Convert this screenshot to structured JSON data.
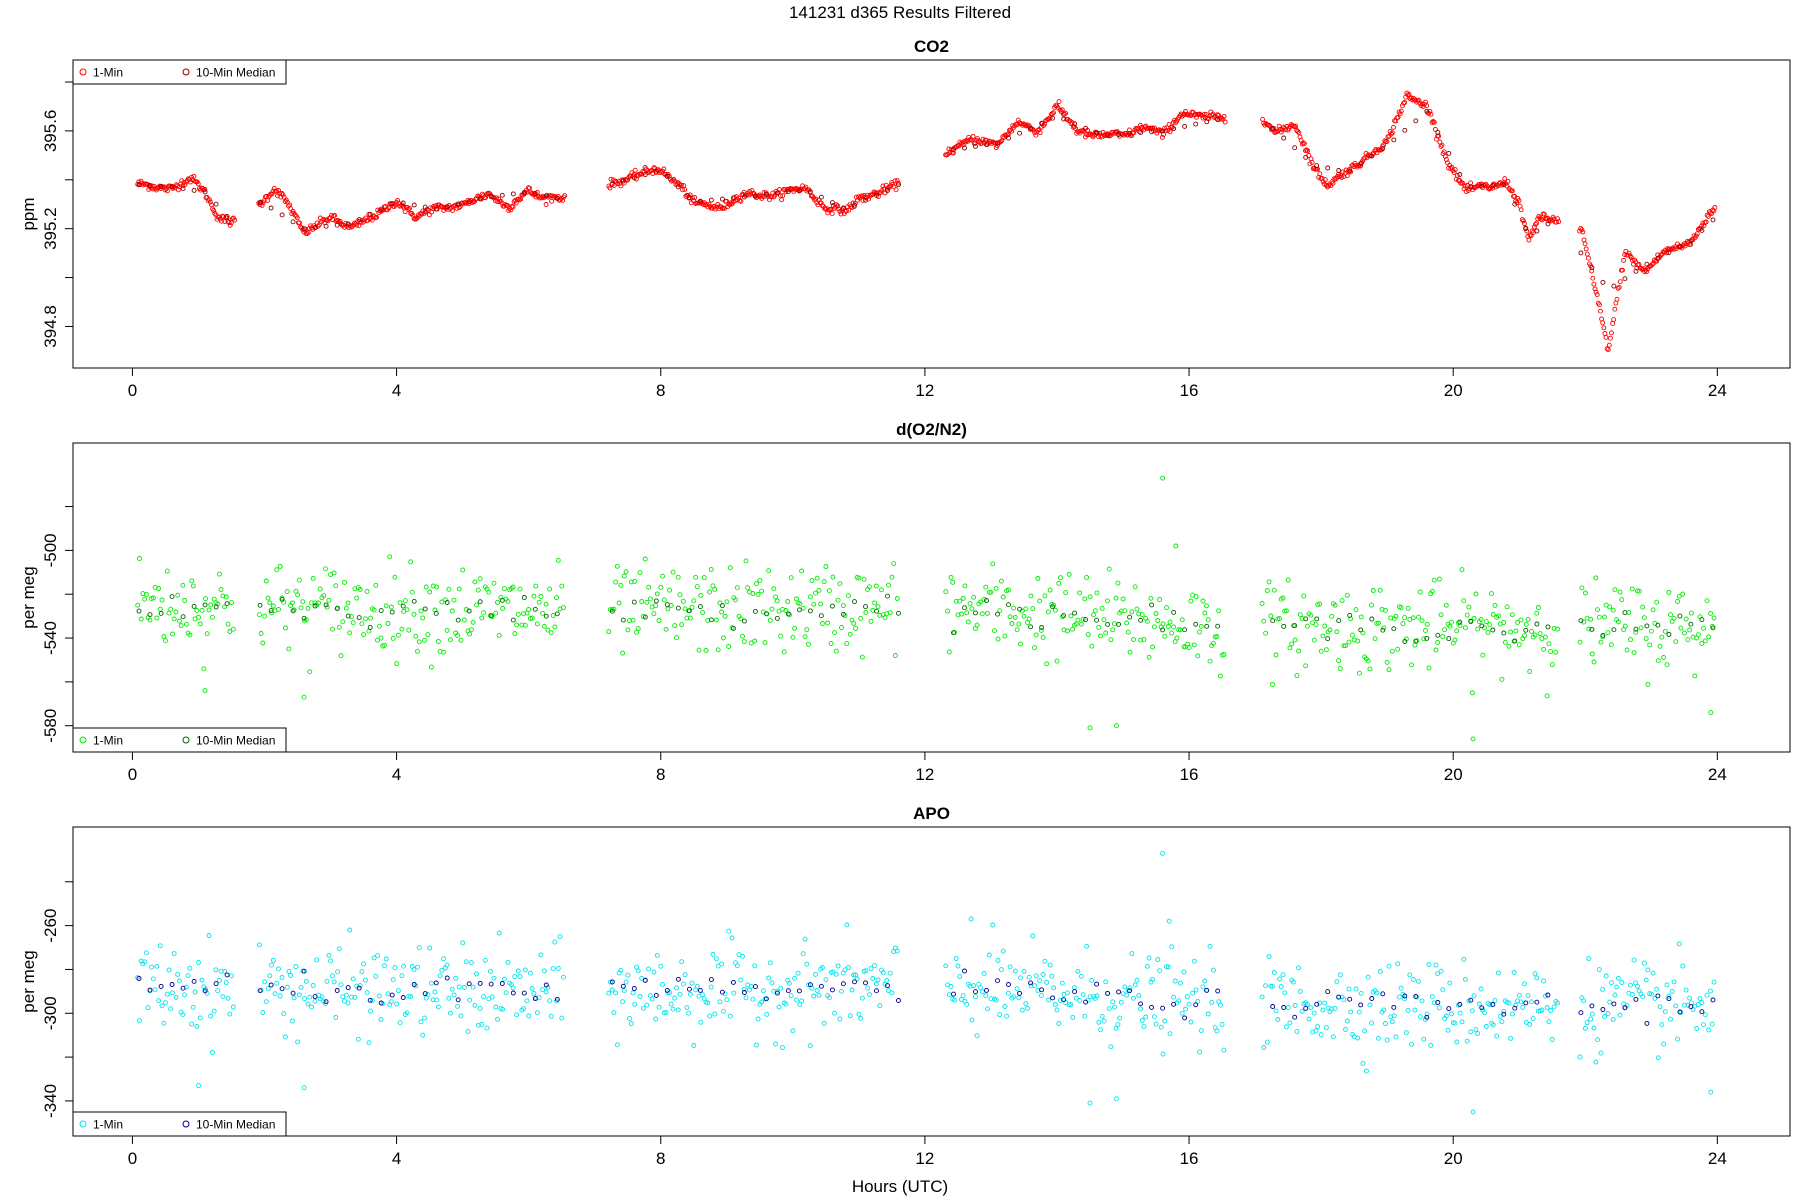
{
  "page_title": "141231   d365   Results Filtered",
  "x_axis_label": "Hours (UTC)",
  "chart_data": [
    {
      "id": "co2",
      "type": "scatter",
      "title": "CO2",
      "ylabel": "ppm",
      "xlim": [
        -0.9,
        25.1
      ],
      "xticks": [
        0,
        4,
        8,
        12,
        16,
        20,
        24
      ],
      "ylim": [
        394.63,
        395.89
      ],
      "yticks": [
        394.8,
        395.2,
        395.6
      ],
      "ytick_labels": [
        "394.8",
        "395.2",
        "395.6"
      ],
      "yticks_minor": [
        394.6,
        395.0,
        395.4,
        395.8
      ],
      "legend": {
        "placement": "top-left",
        "items": [
          "1-Min",
          "10-Min Median"
        ]
      },
      "colors": {
        "one_min": "#ff0000",
        "median": "#8b0000"
      },
      "series": [
        {
          "name": "1-Min",
          "anchors": [
            [
              0.08,
              395.38
            ],
            [
              0.3,
              395.37
            ],
            [
              0.6,
              395.37
            ],
            [
              0.9,
              395.4
            ],
            [
              1.1,
              395.35
            ],
            [
              1.3,
              395.25
            ],
            [
              1.5,
              395.22
            ],
            [
              1.95,
              395.31
            ],
            [
              2.15,
              395.36
            ],
            [
              2.35,
              395.3
            ],
            [
              2.6,
              395.19
            ],
            [
              3.0,
              395.24
            ],
            [
              3.3,
              395.21
            ],
            [
              3.7,
              395.25
            ],
            [
              4.0,
              395.32
            ],
            [
              4.3,
              395.24
            ],
            [
              4.6,
              395.29
            ],
            [
              5.0,
              395.29
            ],
            [
              5.4,
              395.35
            ],
            [
              5.7,
              395.28
            ],
            [
              6.0,
              395.36
            ],
            [
              6.2,
              395.33
            ],
            [
              6.5,
              395.32
            ],
            [
              7.25,
              395.38
            ],
            [
              7.6,
              395.42
            ],
            [
              8.0,
              395.44
            ],
            [
              8.3,
              395.38
            ],
            [
              8.5,
              395.3
            ],
            [
              8.9,
              395.29
            ],
            [
              9.3,
              395.34
            ],
            [
              9.8,
              395.34
            ],
            [
              10.2,
              395.37
            ],
            [
              10.5,
              395.28
            ],
            [
              10.8,
              395.27
            ],
            [
              11.0,
              395.33
            ],
            [
              11.3,
              395.34
            ],
            [
              11.55,
              395.38
            ],
            [
              12.35,
              395.52
            ],
            [
              12.7,
              395.56
            ],
            [
              13.1,
              395.55
            ],
            [
              13.4,
              395.63
            ],
            [
              13.7,
              395.6
            ],
            [
              14.0,
              395.7
            ],
            [
              14.3,
              395.6
            ],
            [
              14.7,
              395.58
            ],
            [
              15.0,
              395.58
            ],
            [
              15.3,
              395.62
            ],
            [
              15.6,
              395.58
            ],
            [
              15.9,
              395.68
            ],
            [
              16.2,
              395.65
            ],
            [
              16.5,
              395.66
            ],
            [
              17.1,
              395.66
            ],
            [
              17.3,
              395.6
            ],
            [
              17.6,
              395.62
            ],
            [
              17.9,
              395.45
            ],
            [
              18.1,
              395.38
            ],
            [
              18.4,
              395.43
            ],
            [
              18.7,
              395.5
            ],
            [
              19.0,
              395.55
            ],
            [
              19.3,
              395.75
            ],
            [
              19.6,
              395.7
            ],
            [
              19.9,
              395.48
            ],
            [
              20.2,
              395.36
            ],
            [
              20.6,
              395.37
            ],
            [
              20.8,
              395.4
            ],
            [
              21.0,
              395.3
            ],
            [
              21.15,
              395.14
            ],
            [
              21.3,
              395.25
            ],
            [
              21.55,
              395.24
            ],
            [
              21.95,
              395.19
            ],
            [
              22.2,
              394.9
            ],
            [
              22.35,
              394.7
            ],
            [
              22.6,
              395.1
            ],
            [
              22.9,
              395.03
            ],
            [
              23.2,
              395.1
            ],
            [
              23.6,
              395.15
            ],
            [
              23.95,
              395.28
            ]
          ],
          "noise": 0.008
        },
        {
          "name": "10-Min Median",
          "anchors": [
            [
              0.08,
              395.38
            ],
            [
              0.6,
              395.37
            ],
            [
              1.1,
              395.35
            ],
            [
              1.5,
              395.23
            ],
            [
              1.95,
              395.31
            ],
            [
              2.6,
              395.2
            ],
            [
              3.3,
              395.22
            ],
            [
              4.0,
              395.31
            ],
            [
              4.6,
              395.28
            ],
            [
              5.4,
              395.33
            ],
            [
              6.0,
              395.35
            ],
            [
              6.5,
              395.32
            ],
            [
              7.25,
              395.38
            ],
            [
              8.0,
              395.44
            ],
            [
              8.5,
              395.31
            ],
            [
              9.3,
              395.33
            ],
            [
              10.2,
              395.36
            ],
            [
              10.8,
              395.28
            ],
            [
              11.55,
              395.37
            ],
            [
              12.35,
              395.52
            ],
            [
              13.1,
              395.55
            ],
            [
              14.0,
              395.66
            ],
            [
              14.7,
              395.58
            ],
            [
              15.6,
              395.6
            ],
            [
              16.5,
              395.65
            ],
            [
              17.1,
              395.65
            ],
            [
              17.9,
              395.46
            ],
            [
              18.4,
              395.43
            ],
            [
              19.0,
              395.54
            ],
            [
              19.6,
              395.68
            ],
            [
              20.2,
              395.37
            ],
            [
              20.8,
              395.38
            ],
            [
              21.15,
              395.17
            ],
            [
              21.55,
              395.24
            ],
            [
              22.35,
              394.95
            ],
            [
              22.9,
              395.05
            ],
            [
              23.6,
              395.15
            ],
            [
              23.95,
              395.24
            ]
          ],
          "noise": 0.0
        }
      ],
      "gaps": [
        [
          1.55,
          1.9
        ],
        [
          6.55,
          7.2
        ],
        [
          11.6,
          12.3
        ],
        [
          16.55,
          17.1
        ],
        [
          21.6,
          21.9
        ]
      ]
    },
    {
      "id": "do2n2",
      "type": "scatter",
      "title": "d(O2/N2)",
      "ylabel": "per meg",
      "xlim": [
        -0.9,
        25.1
      ],
      "xticks": [
        0,
        4,
        8,
        12,
        16,
        20,
        24
      ],
      "ylim": [
        -592,
        -451
      ],
      "yticks": [
        -580,
        -540,
        -500
      ],
      "ytick_labels": [
        "-580",
        "-540",
        "-500"
      ],
      "yticks_minor": [
        -560,
        -520,
        -480
      ],
      "legend": {
        "placement": "bottom-left",
        "items": [
          "1-Min",
          "10-Min Median"
        ]
      },
      "colors": {
        "one_min": "#00ee00",
        "median": "#006400"
      },
      "series": [
        {
          "name": "1-Min",
          "center": -527,
          "spread": 10,
          "center_by_hour": [
            [
              0,
              -525
            ],
            [
              6.5,
              -528
            ],
            [
              12.3,
              -526
            ],
            [
              16.5,
              -535
            ],
            [
              24,
              -535
            ]
          ]
        },
        {
          "name": "10-Min Median",
          "center": -528,
          "spread": 3
        }
      ],
      "outliers": [
        [
          15.6,
          -467
        ],
        [
          14.5,
          -581
        ],
        [
          14.9,
          -580
        ],
        [
          20.3,
          -586
        ],
        [
          23.9,
          -574
        ],
        [
          1.1,
          -564
        ],
        [
          2.6,
          -567
        ],
        [
          15.8,
          -498
        ]
      ],
      "gaps": [
        [
          1.55,
          1.9
        ],
        [
          6.55,
          7.2
        ],
        [
          11.6,
          12.3
        ],
        [
          16.55,
          17.1
        ],
        [
          21.6,
          21.9
        ]
      ]
    },
    {
      "id": "apo",
      "type": "scatter",
      "title": "APO",
      "ylabel": "per meg",
      "xlim": [
        -0.9,
        25.1
      ],
      "xticks": [
        0,
        4,
        8,
        12,
        16,
        20,
        24
      ],
      "ylim": [
        -356,
        -215
      ],
      "yticks": [
        -340,
        -300,
        -260
      ],
      "ytick_labels": [
        "-340",
        "-300",
        "-260"
      ],
      "yticks_minor": [
        -320,
        -280,
        -240
      ],
      "legend": {
        "placement": "bottom-left",
        "items": [
          "1-Min",
          "10-Min Median"
        ]
      },
      "colors": {
        "one_min": "#00e5ee",
        "median": "#00008b"
      },
      "series": [
        {
          "name": "1-Min",
          "center": -290,
          "spread": 10,
          "center_by_hour": [
            [
              0,
              -288
            ],
            [
              6.5,
              -291
            ],
            [
              12.3,
              -288
            ],
            [
              16.5,
              -296
            ],
            [
              24,
              -297
            ]
          ]
        },
        {
          "name": "10-Min Median",
          "center": -291,
          "spread": 3
        }
      ],
      "outliers": [
        [
          15.6,
          -227
        ],
        [
          14.5,
          -341
        ],
        [
          14.9,
          -339
        ],
        [
          20.3,
          -345
        ],
        [
          23.9,
          -336
        ],
        [
          1.0,
          -333
        ],
        [
          2.6,
          -334
        ],
        [
          12.7,
          -257
        ],
        [
          15.7,
          -258
        ]
      ],
      "gaps": [
        [
          1.55,
          1.9
        ],
        [
          6.55,
          7.2
        ],
        [
          11.6,
          12.3
        ],
        [
          16.55,
          17.1
        ],
        [
          21.6,
          21.9
        ]
      ]
    }
  ]
}
